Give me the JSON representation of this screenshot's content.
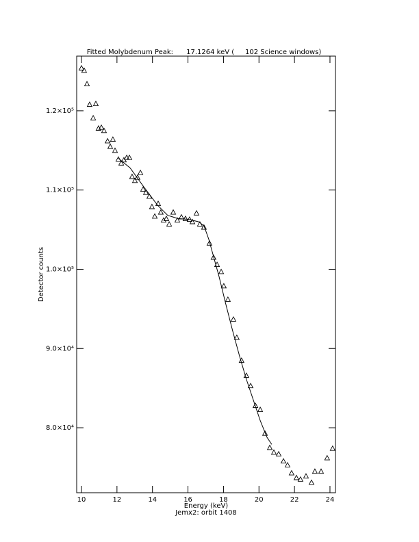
{
  "chart_data": {
    "type": "scatter",
    "title": "Fitted Molybdenum Peak:      17.1264 keV (     102 Science windows)",
    "x_label": "Energy (keV)",
    "subtitle": "Jemx2: orbit 1408",
    "y_label": "Detector counts",
    "xlim": [
      9.73,
      24.31
    ],
    "ylim": [
      71800,
      126900
    ],
    "xticks": [
      10,
      12,
      14,
      16,
      18,
      20,
      22,
      24
    ],
    "yticks": [
      {
        "value": 80000,
        "label": "8.0×10⁴"
      },
      {
        "value": 90000,
        "label": "9.0×10⁴"
      },
      {
        "value": 100000,
        "label": "1.0×10⁵"
      },
      {
        "value": 110000,
        "label": "1.1×10⁵"
      },
      {
        "value": 120000,
        "label": "1.2×10⁵"
      }
    ],
    "color": "#000000",
    "points": {
      "marker": "triangle",
      "x": [
        10.0,
        10.15,
        10.31,
        10.46,
        10.66,
        10.81,
        10.96,
        11.12,
        11.27,
        11.47,
        11.62,
        11.77,
        11.89,
        12.08,
        12.24,
        12.39,
        12.55,
        12.7,
        12.85,
        13.01,
        13.16,
        13.32,
        13.47,
        13.63,
        13.82,
        13.97,
        14.13,
        14.32,
        14.47,
        14.63,
        14.78,
        14.94,
        15.17,
        15.4,
        15.63,
        15.86,
        16.09,
        16.25,
        16.48,
        16.67,
        16.9,
        17.21,
        17.44,
        17.64,
        17.87,
        18.02,
        18.25,
        18.56,
        18.75,
        19.02,
        19.29,
        19.53,
        19.8,
        20.07,
        20.34,
        20.61,
        20.84,
        21.11,
        21.38,
        21.61,
        21.84,
        22.11,
        22.34,
        22.65,
        22.96,
        23.15,
        23.5,
        23.84,
        24.15
      ],
      "y": [
        125400,
        125100,
        123400,
        120800,
        119100,
        120900,
        117800,
        117900,
        117500,
        116200,
        115500,
        116400,
        115000,
        113900,
        113400,
        113800,
        114100,
        114100,
        111700,
        111200,
        111600,
        112200,
        110100,
        109700,
        109200,
        107900,
        106700,
        108300,
        107200,
        106200,
        106400,
        105700,
        107200,
        106200,
        106600,
        106400,
        106300,
        106000,
        107100,
        105700,
        105300,
        103300,
        101500,
        100600,
        99700,
        97900,
        96200,
        93700,
        91400,
        88500,
        86600,
        85300,
        82800,
        82300,
        79300,
        77500,
        76900,
        76700,
        75800,
        75300,
        74300,
        73700,
        73500,
        73900,
        73100,
        74500,
        74500,
        76200,
        77400
      ]
    },
    "fit": {
      "x": [
        12.08,
        12.74,
        13.51,
        14.28,
        14.86,
        15.44,
        16.02,
        16.59,
        16.9,
        17.17,
        17.44,
        17.75,
        18.13,
        18.52,
        18.9,
        19.29,
        19.68,
        20.07,
        20.45,
        20.72
      ],
      "y": [
        114000,
        112800,
        110400,
        108100,
        106800,
        106400,
        106300,
        106000,
        105500,
        103800,
        101600,
        99100,
        95600,
        92200,
        89100,
        86100,
        83500,
        80900,
        78800,
        77900
      ]
    }
  }
}
